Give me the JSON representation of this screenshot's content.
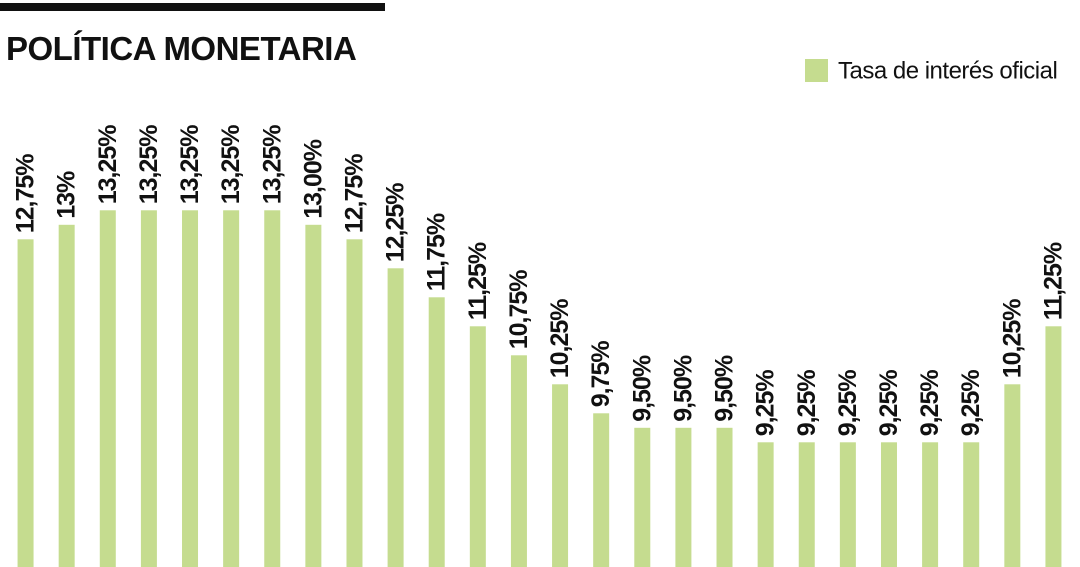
{
  "chart_data": {
    "type": "bar",
    "title": "POLÍTICA MONETARIA",
    "categories": [
      null,
      null,
      null,
      null,
      null,
      null,
      null,
      null,
      null,
      null,
      null,
      null,
      null,
      null,
      null,
      null,
      null,
      null,
      null,
      null,
      null,
      null,
      null,
      null,
      null,
      null
    ],
    "series": [
      {
        "name": "Tasa de interés oficial",
        "color": "#c5dc8f",
        "values": [
          12.75,
          13,
          13.25,
          13.25,
          13.25,
          13.25,
          13.25,
          13.0,
          12.75,
          12.25,
          11.75,
          11.25,
          10.75,
          10.25,
          9.75,
          9.5,
          9.5,
          9.5,
          9.25,
          9.25,
          9.25,
          9.25,
          9.25,
          9.25,
          10.25,
          11.25
        ],
        "value_labels": [
          "12,75%",
          "13%",
          "13,25%",
          "13,25%",
          "13,25%",
          "13,25%",
          "13,25%",
          "13,00%",
          "12,75%",
          "12,25%",
          "11,75%",
          "11,25%",
          "10,75%",
          "10,25%",
          "9,75%",
          "9,50%",
          "9,50%",
          "9,50%",
          "9,25%",
          "9,25%",
          "9,25%",
          "9,25%",
          "9,25%",
          "9,25%",
          "10,25%",
          "11,25%"
        ]
      }
    ],
    "ylim": [
      7.1,
      14.5
    ],
    "legend": "top-right"
  }
}
